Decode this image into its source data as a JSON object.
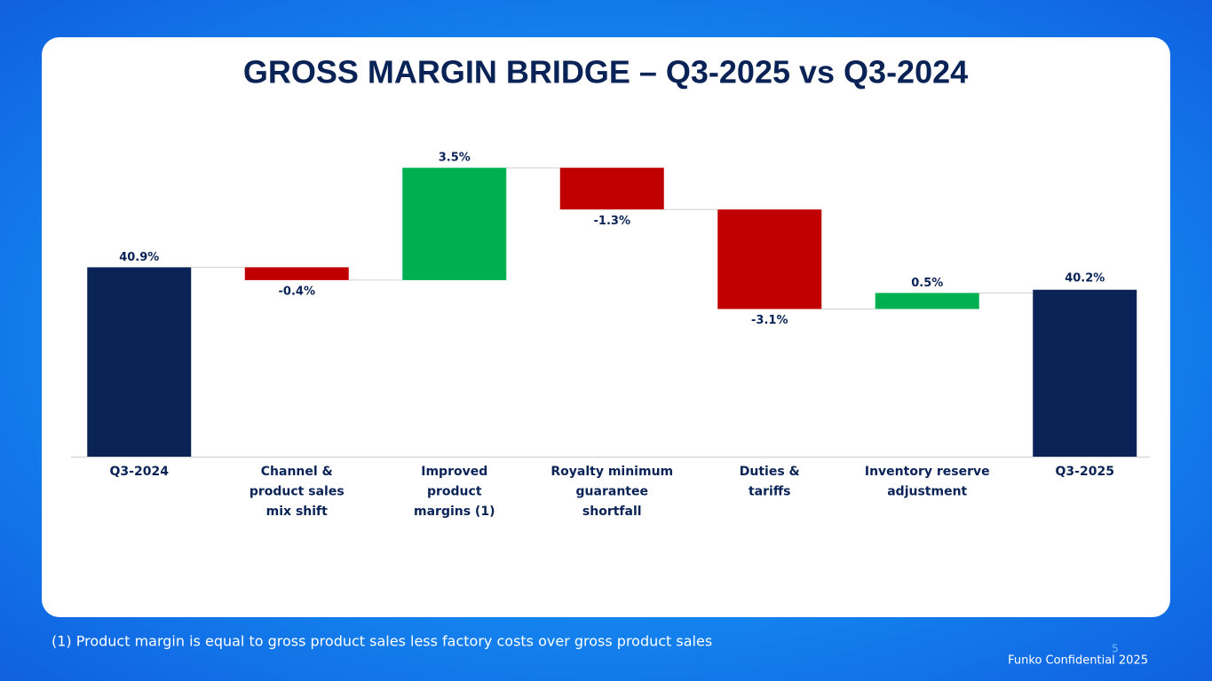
{
  "chart_data": {
    "type": "waterfall",
    "title": "GROSS MARGIN BRIDGE – Q3-2025 vs Q3-2024",
    "categories": [
      "Q3-2024",
      "Channel &\nproduct sales\nmix shift",
      "Improved\nproduct\nmargins (1)",
      "Royalty  minimum\nguarantee\nshortfall",
      "Duties &\ntariffs",
      "Inventory  reserve\nadjustment",
      "Q3-2025"
    ],
    "values": [
      40.9,
      -0.4,
      3.5,
      -1.3,
      -3.1,
      0.5,
      40.2
    ],
    "value_labels": [
      "40.9%",
      "-0.4%",
      "3.5%",
      "-1.3%",
      "-3.1%",
      "0.5%",
      "40.2%"
    ],
    "colors": [
      "#0a2356",
      "#c00000",
      "#00b050",
      "#c00000",
      "#c00000",
      "#00b050",
      "#0a2356"
    ],
    "ylim": [
      35,
      45
    ]
  },
  "footnote": "(1) Product margin is equal to gross product sales less factory costs over gross product sales",
  "page_number": "5",
  "footer": "Funko Confidential 2025"
}
